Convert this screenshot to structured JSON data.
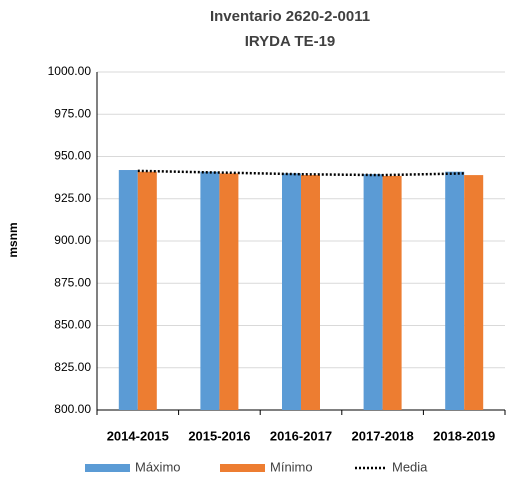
{
  "chart_data": {
    "type": "bar",
    "title": "Inventario 2620-2-0011",
    "subtitle": "IRYDA TE-19",
    "y_label": "msnm",
    "categories": [
      "2014-2015",
      "2015-2016",
      "2016-2017",
      "2017-2018",
      "2018-2019"
    ],
    "series": [
      {
        "name": "Máximo",
        "color": "#5b9bd5",
        "values": [
          942,
          941,
          940,
          939.5,
          941
        ]
      },
      {
        "name": "Mínimo",
        "color": "#ed7d31",
        "values": [
          941,
          940,
          939,
          938.5,
          939
        ]
      },
      {
        "name": "Media",
        "type": "line",
        "color": "#000000",
        "values": [
          941.5,
          940.5,
          939.5,
          939,
          940
        ]
      }
    ],
    "ylim": [
      800,
      1000
    ],
    "yticks": [
      {
        "value": 800,
        "label": "800.00"
      },
      {
        "value": 825,
        "label": "825.00"
      },
      {
        "value": 850,
        "label": "850.00"
      },
      {
        "value": 875,
        "label": "875.00"
      },
      {
        "value": 900,
        "label": "900.00"
      },
      {
        "value": 925,
        "label": "925.00"
      },
      {
        "value": 950,
        "label": "950.00"
      },
      {
        "value": 975,
        "label": "975.00"
      },
      {
        "value": 1000,
        "label": "1000.00"
      }
    ],
    "grid": true,
    "legend": "bottom"
  }
}
